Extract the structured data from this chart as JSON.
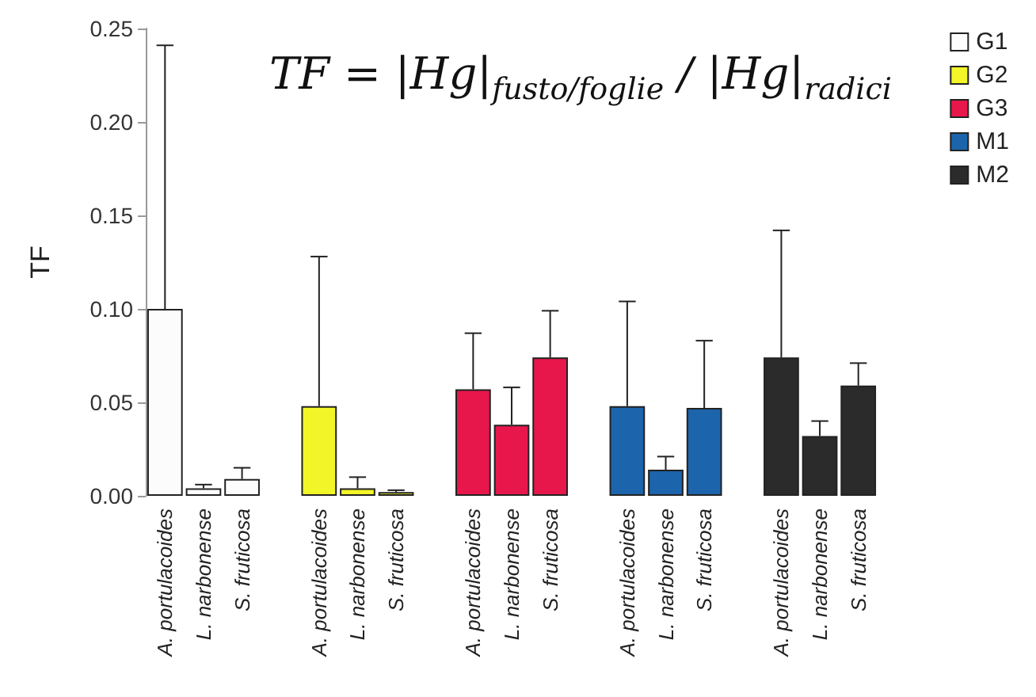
{
  "chart_data": {
    "type": "bar",
    "ylabel": "TF",
    "annotations": [
      "TF = |Hg|$_{fusto/foglie}$ / |Hg|$_{radici}$"
    ],
    "categories": [
      "A. portulacoides",
      "L. narbonense",
      "S. fruticosa",
      null,
      "A. portulacoides",
      "L. narbonense",
      "S. fruticosa",
      null,
      "A. portulacoides",
      "L. narbonense",
      "S. fruticosa",
      null,
      "A. portulacoides",
      "L. narbonense",
      "S. fruticosa",
      null,
      "A. portulacoides",
      "L. narbonense",
      "S. fruticosa"
    ],
    "series": [
      {
        "name": "G1",
        "color": "#fcfcfc",
        "values": [
          0.1,
          0.004,
          0.009,
          null,
          null,
          null,
          null,
          null,
          null,
          null,
          null,
          null,
          null,
          null,
          null,
          null,
          null,
          null,
          null
        ],
        "errors": [
          [
            0.1,
            0.241
          ],
          [
            0.004,
            0.006
          ],
          [
            0.009,
            0.015
          ],
          null,
          null,
          null,
          null,
          null,
          null,
          null,
          null,
          null,
          null,
          null,
          null,
          null,
          null,
          null,
          null
        ]
      },
      {
        "name": "G2",
        "color": "#f2f527",
        "values": [
          null,
          null,
          null,
          null,
          0.048,
          0.004,
          0.002,
          null,
          null,
          null,
          null,
          null,
          null,
          null,
          null,
          null,
          null,
          null,
          null
        ],
        "errors": [
          null,
          null,
          null,
          null,
          [
            0.048,
            0.128
          ],
          [
            0.004,
            0.01
          ],
          [
            0.002,
            0.003
          ],
          null,
          null,
          null,
          null,
          null,
          null,
          null,
          null,
          null,
          null,
          null,
          null
        ]
      },
      {
        "name": "G3",
        "color": "#e8174b",
        "values": [
          null,
          null,
          null,
          null,
          null,
          null,
          null,
          null,
          0.057,
          0.038,
          0.074,
          null,
          null,
          null,
          null,
          null,
          null,
          null,
          null
        ],
        "errors": [
          null,
          null,
          null,
          null,
          null,
          null,
          null,
          null,
          [
            0.057,
            0.087
          ],
          [
            0.038,
            0.058
          ],
          [
            0.074,
            0.099
          ],
          null,
          null,
          null,
          null,
          null,
          null,
          null,
          null
        ]
      },
      {
        "name": "M1",
        "color": "#1c64ab",
        "values": [
          null,
          null,
          null,
          null,
          null,
          null,
          null,
          null,
          null,
          null,
          null,
          null,
          0.048,
          0.014,
          0.047,
          null,
          null,
          null,
          null
        ],
        "errors": [
          null,
          null,
          null,
          null,
          null,
          null,
          null,
          null,
          null,
          null,
          null,
          null,
          [
            0.048,
            0.104
          ],
          [
            0.014,
            0.021
          ],
          [
            0.047,
            0.083
          ],
          null,
          null,
          null,
          null
        ]
      },
      {
        "name": "M2",
        "color": "#2b2b2b",
        "values": [
          null,
          null,
          null,
          null,
          null,
          null,
          null,
          null,
          null,
          null,
          null,
          null,
          null,
          null,
          null,
          null,
          0.074,
          0.032,
          0.059
        ],
        "errors": [
          null,
          null,
          null,
          null,
          null,
          null,
          null,
          null,
          null,
          null,
          null,
          null,
          null,
          null,
          null,
          null,
          [
            0.074,
            0.142
          ],
          [
            0.032,
            0.04
          ],
          [
            0.059,
            0.071
          ]
        ]
      }
    ],
    "ylim": [
      0,
      0.25
    ],
    "yticks": [
      {
        "value": 0,
        "label": "0.00"
      },
      {
        "value": 0.05,
        "label": "0.05"
      },
      {
        "value": 0.1,
        "label": "0.10"
      },
      {
        "value": 0.15,
        "label": "0.15"
      },
      {
        "value": 0.2,
        "label": "0.20"
      },
      {
        "value": 0.25,
        "label": "0.25"
      }
    ],
    "grid": false,
    "legend": "top right"
  }
}
